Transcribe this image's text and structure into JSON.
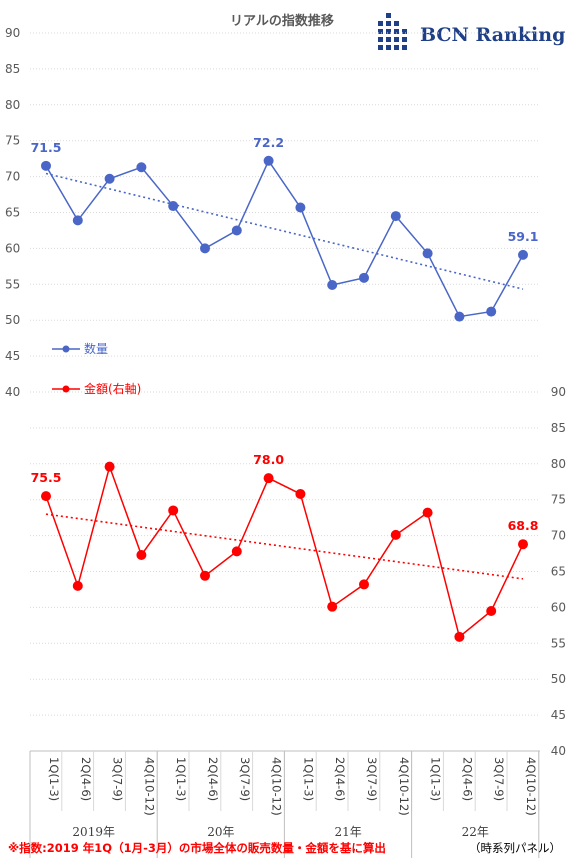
{
  "title": "リアルの指数推移",
  "brand": {
    "name": "BCN Ranking",
    "color": "#1f3f86"
  },
  "footnote": "※指数:2019 年1Q（1月-3月）の市場全体の販売数量・金額を基に算出",
  "panel_note": "（時系列パネル）",
  "chart_data": [
    {
      "type": "line",
      "categories": [
        "1Q(1-3)",
        "2Q(4-6)",
        "3Q(7-9)",
        "4Q(10-12)",
        "1Q(1-3)",
        "2Q(4-6)",
        "3Q(7-9)",
        "4Q(10-12)",
        "1Q(1-3)",
        "2Q(4-6)",
        "3Q(7-9)",
        "4Q(10-12)",
        "1Q(1-3)",
        "2Q(4-6)",
        "3Q(7-9)",
        "4Q(10-12)"
      ],
      "year_groups": [
        {
          "label": "2019年",
          "start": 0,
          "end": 3
        },
        {
          "label": "20年",
          "start": 4,
          "end": 7
        },
        {
          "label": "21年",
          "start": 8,
          "end": 11
        },
        {
          "label": "22年",
          "start": 12,
          "end": 15
        }
      ],
      "series": [
        {
          "name": "数量",
          "axis": "left",
          "color": "#4a67c7",
          "values": [
            71.5,
            63.9,
            69.7,
            71.3,
            65.9,
            60.0,
            62.5,
            72.2,
            65.7,
            54.9,
            55.9,
            64.5,
            59.3,
            50.5,
            51.2,
            59.1
          ],
          "labels": [
            {
              "index": 0,
              "text": "71.5"
            },
            {
              "index": 7,
              "text": "72.2"
            },
            {
              "index": 15,
              "text": "59.1"
            }
          ],
          "trendline": "linear"
        },
        {
          "name": "金額(右軸)",
          "axis": "right",
          "color": "#ff0000",
          "values": [
            75.5,
            63.0,
            79.6,
            67.3,
            73.5,
            64.4,
            67.8,
            78.0,
            75.8,
            60.1,
            63.2,
            70.1,
            73.2,
            55.9,
            59.5,
            68.8
          ],
          "labels": [
            {
              "index": 0,
              "text": "75.5"
            },
            {
              "index": 7,
              "text": "78.0"
            },
            {
              "index": 15,
              "text": "68.8"
            }
          ],
          "trendline": "linear"
        }
      ],
      "left_axis": {
        "ticks": [
          90,
          85,
          80,
          75,
          70,
          65,
          60,
          55,
          50,
          45,
          40
        ]
      },
      "right_axis": {
        "ticks": [
          90,
          85,
          80,
          75,
          70,
          65,
          60,
          55,
          50,
          45,
          40
        ]
      },
      "ylim": [
        40,
        90
      ],
      "ylim_right": [
        40,
        90
      ],
      "grid": true,
      "legend_position": "left-middle"
    }
  ]
}
